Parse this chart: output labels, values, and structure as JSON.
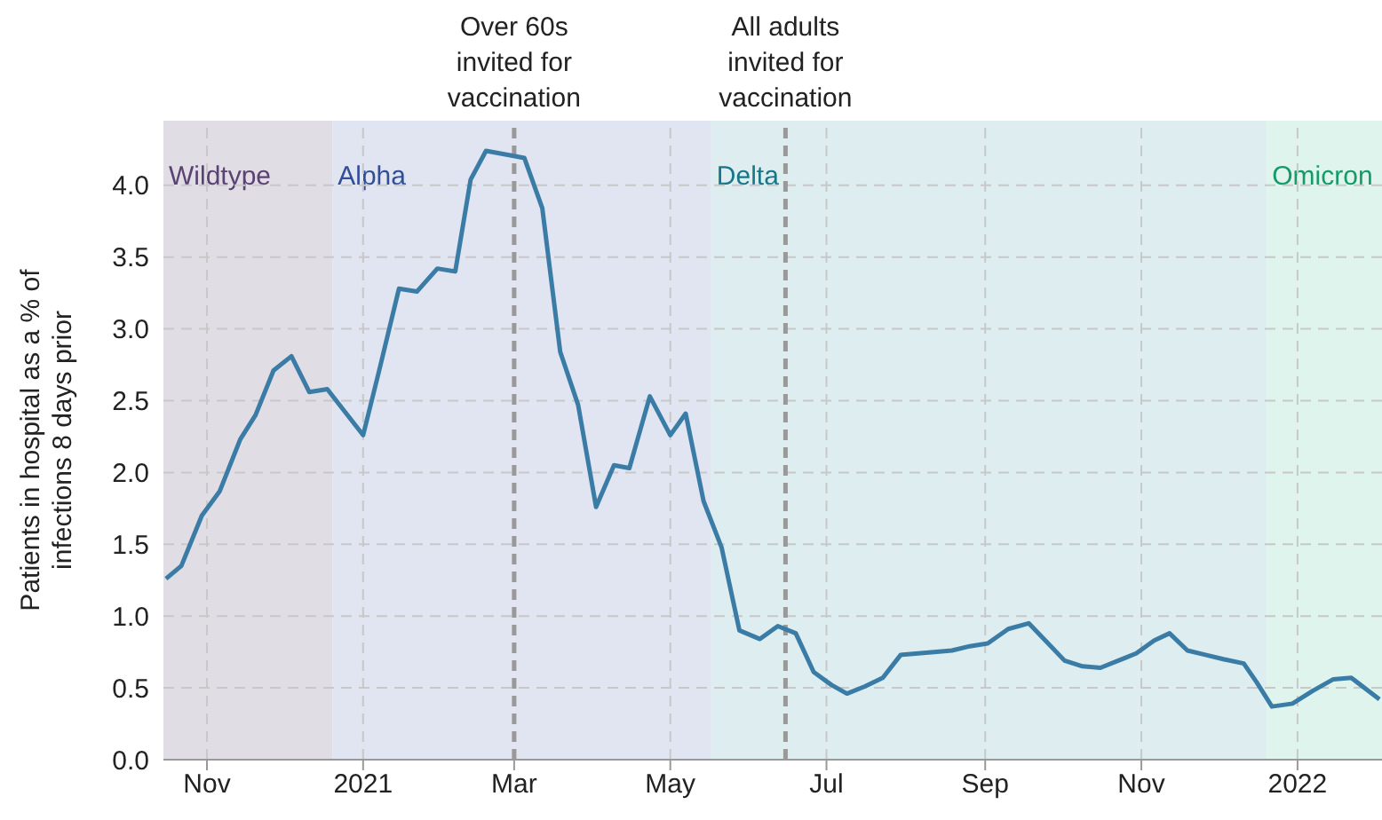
{
  "chart_data": {
    "type": "line",
    "ylabel": "Patients in hospital as a % of infections 8 days prior",
    "series": [
      {
        "color": "#3a7ca5",
        "x": [
          "2020-10-16",
          "2020-10-22",
          "2020-10-30",
          "2020-11-06",
          "2020-11-14",
          "2020-11-20",
          "2020-11-27",
          "2020-12-04",
          "2020-12-11",
          "2020-12-18",
          "2021-01-01",
          "2021-01-07",
          "2021-01-15",
          "2021-01-22",
          "2021-01-30",
          "2021-02-06",
          "2021-02-12",
          "2021-02-18",
          "2021-02-27",
          "2021-03-05",
          "2021-03-12",
          "2021-03-19",
          "2021-03-26",
          "2021-04-02",
          "2021-04-09",
          "2021-04-15",
          "2021-04-23",
          "2021-05-01",
          "2021-05-07",
          "2021-05-14",
          "2021-05-21",
          "2021-05-28",
          "2021-06-05",
          "2021-06-12",
          "2021-06-19",
          "2021-06-26",
          "2021-07-03",
          "2021-07-09",
          "2021-07-16",
          "2021-07-23",
          "2021-07-30",
          "2021-08-12",
          "2021-08-19",
          "2021-08-26",
          "2021-09-02",
          "2021-09-10",
          "2021-09-18",
          "2021-09-25",
          "2021-10-02",
          "2021-10-09",
          "2021-10-16",
          "2021-10-23",
          "2021-10-30",
          "2021-11-06",
          "2021-11-12",
          "2021-11-19",
          "2021-11-26",
          "2021-12-03",
          "2021-12-11",
          "2021-12-16",
          "2021-12-22",
          "2021-12-30",
          "2022-01-07",
          "2022-01-15",
          "2022-01-22",
          "2022-02-02"
        ],
        "values": [
          1.26,
          1.35,
          1.7,
          1.87,
          2.23,
          2.4,
          2.71,
          2.81,
          2.56,
          2.58,
          2.26,
          2.69,
          3.28,
          3.26,
          3.42,
          3.4,
          4.04,
          4.24,
          4.21,
          4.19,
          3.84,
          2.84,
          2.47,
          1.76,
          2.05,
          2.03,
          2.53,
          2.26,
          2.41,
          1.8,
          1.48,
          0.9,
          0.84,
          0.93,
          0.88,
          0.61,
          0.52,
          0.46,
          0.51,
          0.57,
          0.73,
          0.75,
          0.76,
          0.79,
          0.81,
          0.91,
          0.95,
          0.82,
          0.69,
          0.65,
          0.64,
          0.69,
          0.74,
          0.83,
          0.88,
          0.76,
          0.73,
          0.7,
          0.67,
          0.54,
          0.37,
          0.39,
          0.48,
          0.56,
          0.57,
          0.42
        ]
      }
    ],
    "xlim": [
      "2020-10-15",
      "2022-02-03"
    ],
    "xticks": [
      {
        "value": "2020-11-01",
        "label": "Nov"
      },
      {
        "value": "2021-01-01",
        "label": "2021"
      },
      {
        "value": "2021-03-01",
        "label": "Mar"
      },
      {
        "value": "2021-05-01",
        "label": "May"
      },
      {
        "value": "2021-07-01",
        "label": "Jul"
      },
      {
        "value": "2021-09-01",
        "label": "Sep"
      },
      {
        "value": "2021-11-01",
        "label": "Nov"
      },
      {
        "value": "2022-01-01",
        "label": "2022"
      }
    ],
    "ylim": [
      0,
      4.45
    ],
    "yticks": [
      {
        "value": 0,
        "label": "0.0"
      },
      {
        "value": 0.5,
        "label": "0.5"
      },
      {
        "value": 1,
        "label": "1.0"
      },
      {
        "value": 1.5,
        "label": "1.5"
      },
      {
        "value": 2,
        "label": "2.0"
      },
      {
        "value": 2.5,
        "label": "2.5"
      },
      {
        "value": 3,
        "label": "3.0"
      },
      {
        "value": 3.5,
        "label": "3.5"
      },
      {
        "value": 4,
        "label": "4.0"
      }
    ],
    "bands": [
      {
        "axis": "x",
        "from": "2020-10-15",
        "to": "2020-12-20",
        "label": "Wildtype",
        "color": "#e1dde5"
      },
      {
        "axis": "x",
        "from": "2020-12-20",
        "to": "2021-05-17",
        "label": "Alpha",
        "color": "#e0e5f1"
      },
      {
        "axis": "x",
        "from": "2021-05-17",
        "to": "2021-12-20",
        "label": "Delta",
        "color": "#ddedf0"
      },
      {
        "axis": "x",
        "from": "2021-12-20",
        "to": "2022-02-03",
        "label": "Omicron",
        "color": "#def4ec"
      }
    ],
    "ref_lines": [
      {
        "axis": "x",
        "value": "2021-03-01",
        "label": "Over 60s invited for vaccination",
        "color": "#999999",
        "line_style": "dashed"
      },
      {
        "axis": "x",
        "value": "2021-06-15",
        "label": "All adults invited for vaccination",
        "color": "#999999",
        "line_style": "dashed"
      }
    ],
    "grid": true,
    "legend": false,
    "marker": "none",
    "line_style": "solid"
  }
}
